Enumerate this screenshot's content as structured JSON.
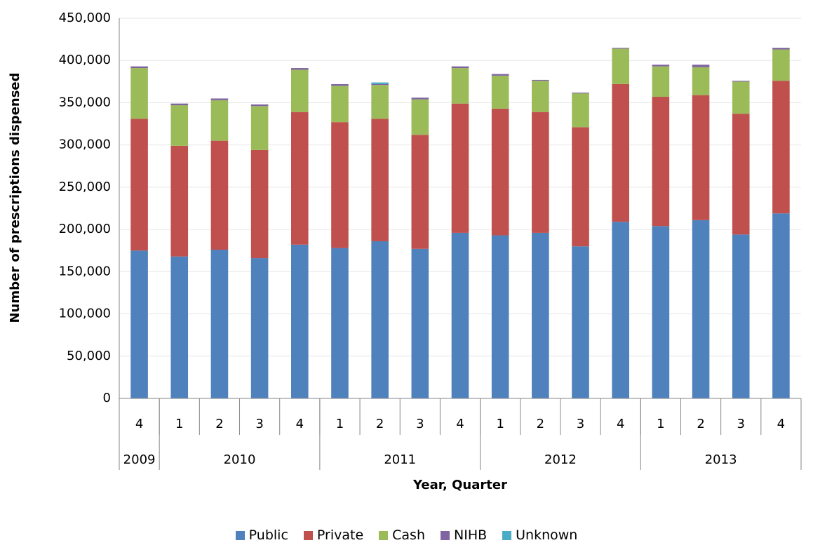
{
  "chart_data": {
    "type": "stacked-bar",
    "y_label": "Number of prescriptions dispensed",
    "x_label": "Year, Quarter",
    "categories": [
      "4",
      "1",
      "2",
      "3",
      "4",
      "1",
      "2",
      "3",
      "4",
      "1",
      "2",
      "3",
      "4",
      "1",
      "2",
      "3",
      "4"
    ],
    "groups": [
      {
        "label": "2009",
        "span": 1
      },
      {
        "label": "2010",
        "span": 4
      },
      {
        "label": "2011",
        "span": 4
      },
      {
        "label": "2012",
        "span": 4
      },
      {
        "label": "2013",
        "span": 4
      }
    ],
    "series": [
      {
        "name": "Public",
        "color": "#4f81bd",
        "values": [
          175000,
          168000,
          176000,
          166000,
          182000,
          178000,
          186000,
          177000,
          196000,
          193000,
          196000,
          180000,
          209000,
          204000,
          211000,
          194000,
          219000
        ]
      },
      {
        "name": "Private",
        "color": "#c0504d",
        "values": [
          156000,
          131000,
          129000,
          128000,
          157000,
          149000,
          145000,
          135000,
          153000,
          150000,
          143000,
          141000,
          163000,
          153000,
          148000,
          143000,
          157000
        ]
      },
      {
        "name": "Cash",
        "color": "#9bbb59",
        "values": [
          60000,
          48000,
          48000,
          52000,
          50000,
          43000,
          40000,
          42000,
          42000,
          39000,
          37000,
          40000,
          42000,
          36000,
          33000,
          38000,
          37000
        ]
      },
      {
        "name": "NIHB",
        "color": "#8064a2",
        "values": [
          2000,
          2000,
          2000,
          2000,
          2000,
          2000,
          1000,
          2000,
          2000,
          2000,
          1000,
          1000,
          1000,
          2000,
          3000,
          1000,
          2000
        ]
      },
      {
        "name": "Unknown",
        "color": "#4bacc6",
        "values": [
          0,
          0,
          0,
          0,
          0,
          0,
          2000,
          0,
          0,
          0,
          0,
          0,
          0,
          0,
          0,
          0,
          0
        ]
      }
    ],
    "ylim": [
      0,
      450000
    ],
    "yticks": [
      0,
      {
        "value": 50000,
        "label": "50,000"
      },
      {
        "value": 100000,
        "label": "100,000"
      },
      {
        "value": 150000,
        "label": "150,000"
      },
      {
        "value": 200000,
        "label": "200,000"
      },
      {
        "value": 250000,
        "label": "250,000"
      },
      {
        "value": 300000,
        "label": "300,000"
      },
      {
        "value": 350000,
        "label": "350,000"
      },
      {
        "value": 400000,
        "label": "400,000"
      },
      {
        "value": 450000,
        "label": "450,000"
      }
    ],
    "grid": true,
    "legend": "bottom"
  }
}
